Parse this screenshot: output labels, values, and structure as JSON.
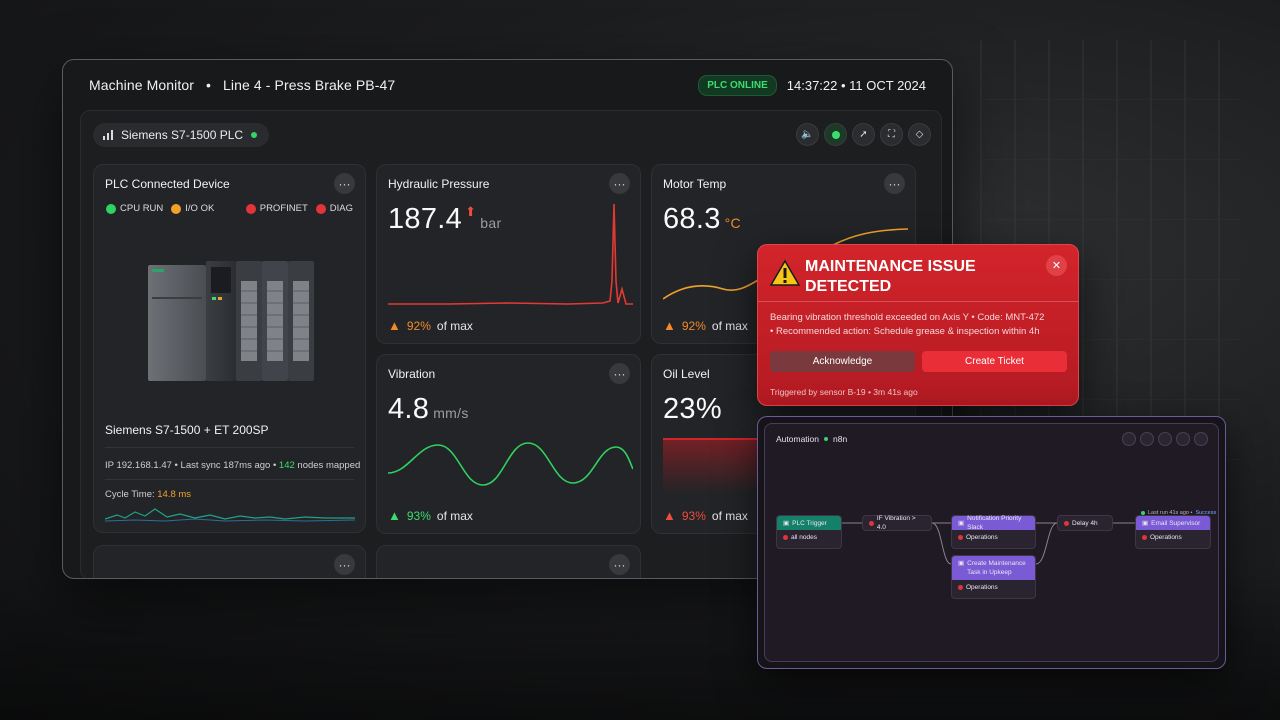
{
  "header": {
    "app_name": "Machine Monitor",
    "separator": "•",
    "machine": "Line 4 - Press Brake PB-47",
    "status_badge": "PLC ONLINE",
    "timestamp": "14:37:22 • 11 OCT 2024"
  },
  "device_selector": {
    "label": "Siemens S7-1500 PLC"
  },
  "cards": {
    "plc": {
      "title": "PLC Connected Device",
      "statuses": [
        {
          "label": "CPU RUN",
          "color": "#2fd35f"
        },
        {
          "label": "I/O OK",
          "color": "#f0a12a"
        },
        {
          "label": "PROFINET",
          "color": "#e3343c"
        },
        {
          "label": "DIAG",
          "color": "#e3343c"
        }
      ],
      "device_name": "Siemens S7-1500 + ET 200SP",
      "ip": "IP 192.168.1.47",
      "sync": "Last sync 187ms ago",
      "nodes_count": "142",
      "nodes_label": "nodes mapped",
      "cycle_label": "Cycle Time:",
      "cycle_value": "14.8 ms"
    },
    "pressure": {
      "title": "Hydraulic Pressure",
      "value": "187.4",
      "unit": "bar",
      "pct": "92%",
      "of_max": "of max"
    },
    "motor": {
      "title": "Motor Temp",
      "value": "68.3",
      "unit": "°C",
      "pct": "92%",
      "of_max": "of max"
    },
    "vibration": {
      "title": "Vibration",
      "value": "4.8",
      "unit": "mm/s",
      "pct": "93%",
      "of_max": "of max"
    },
    "oil": {
      "title": "Oil Level",
      "value": "23%",
      "pct": "93%",
      "of_max": "of max"
    }
  },
  "alert": {
    "title_line1": "MAINTENANCE ISSUE",
    "title_line2": "DETECTED",
    "body_line1": "Bearing vibration threshold exceeded on Axis Y • Code: MNT-472",
    "body_line2": "• Recommended action: Schedule grease & inspection within 4h",
    "acknowledge": "Acknowledge",
    "create_ticket": "Create Ticket",
    "footer": "Triggered by sensor B-19 • 3m 41s ago"
  },
  "automation": {
    "title": "Automation",
    "subtitle": "n8n",
    "last_run": "Last run 41s ago •",
    "last_run_status": "Success",
    "nodes": {
      "plc_trigger": "PLC Trigger",
      "plc_trigger_sub": "all nodes",
      "if_vibration": "IF Vibration > 4.0",
      "notify_head": "Notification Priority Slack",
      "notify_sub": "Operations",
      "create_head": "Create Maintenance Task in Upkeep",
      "create_sub": "Operations",
      "delay": "Delay 4h",
      "email_head": "Email Supervisor",
      "email_sub": "Operations"
    }
  },
  "colors": {
    "accent_green": "#3ddc6e",
    "alert_red": "#d3242b",
    "purple": "#7b5ad6",
    "teal": "#14806a"
  }
}
